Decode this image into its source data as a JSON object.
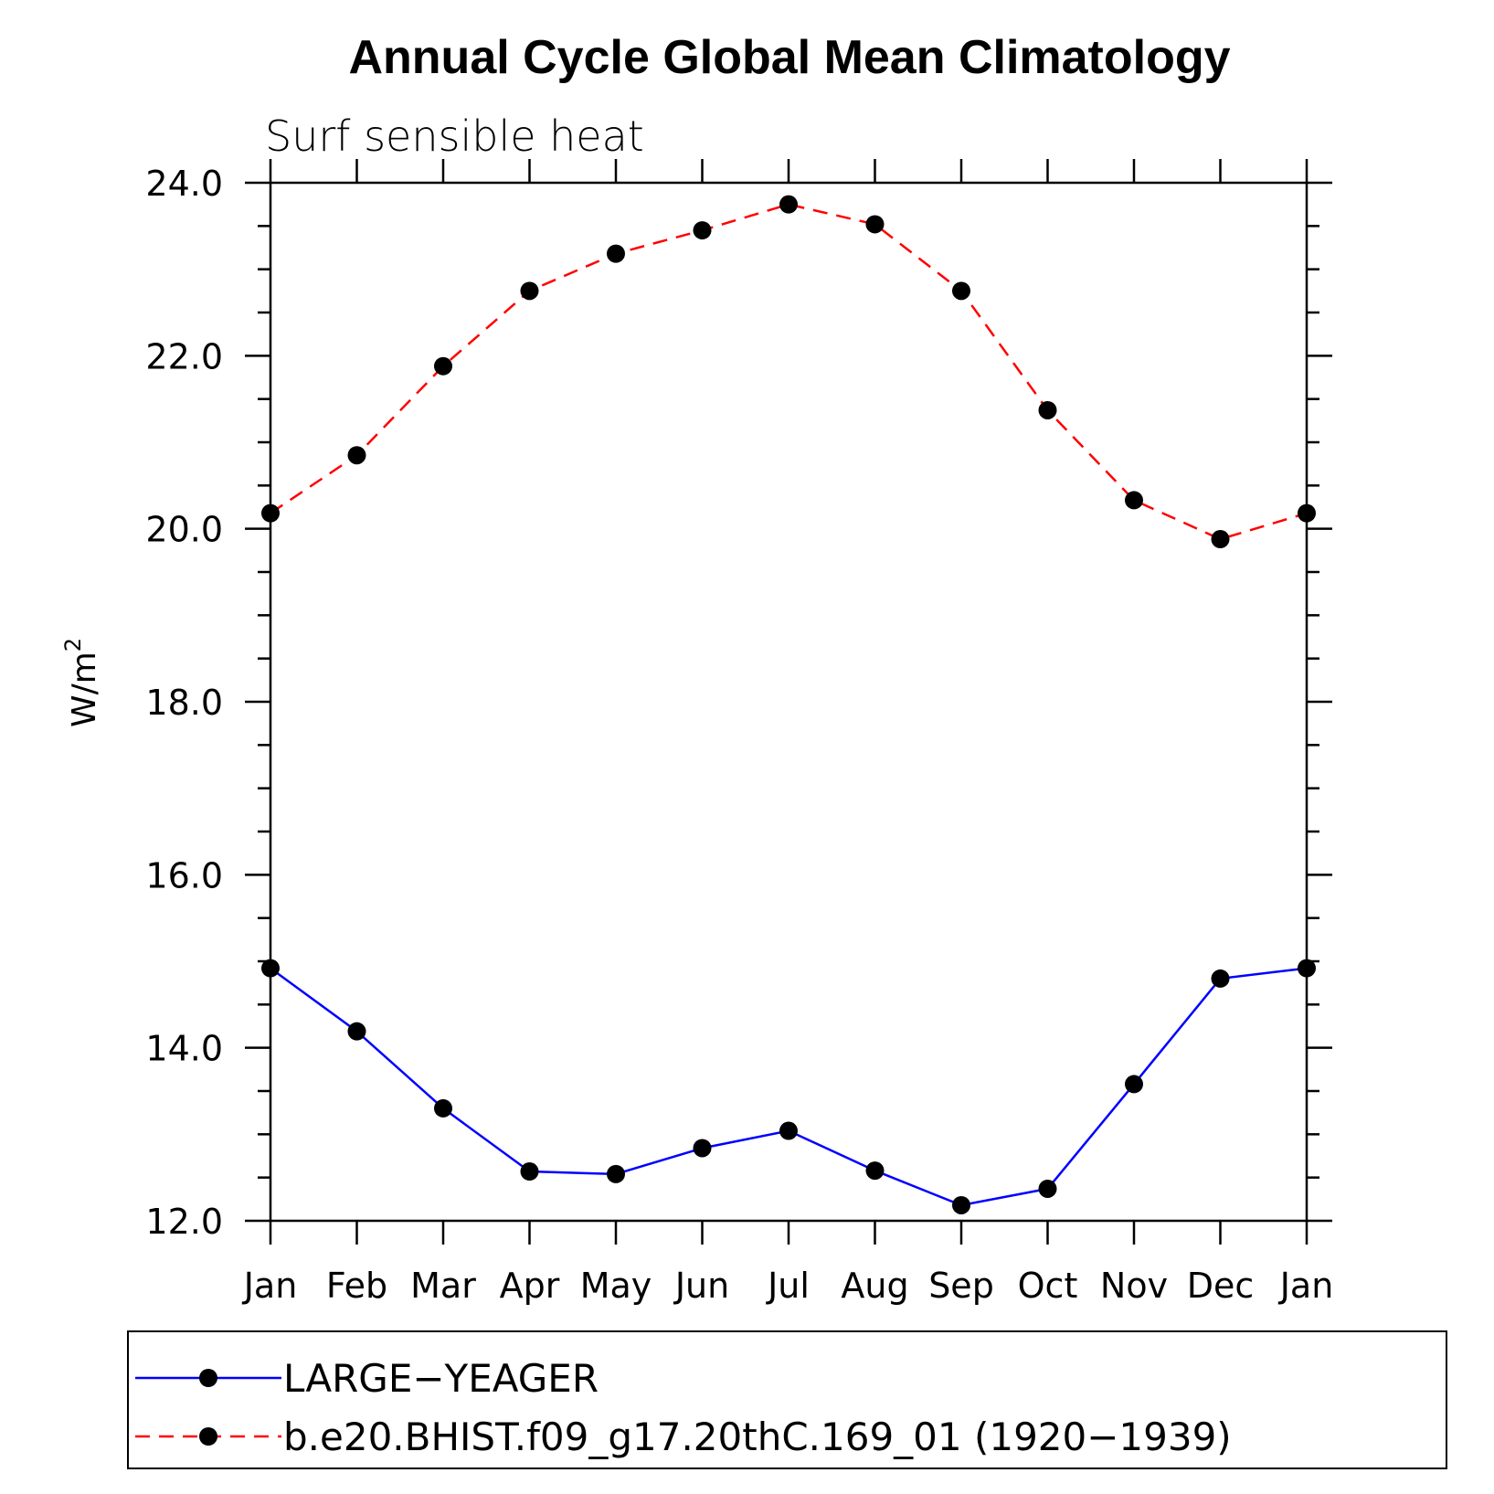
{
  "chart_data": {
    "type": "line",
    "title": "Annual Cycle Global Mean Climatology",
    "subtitle": "Surf sensible heat",
    "ylabel_base": "W/m",
    "ylabel_sup": "2",
    "xlabel": "",
    "categories": [
      "Jan",
      "Feb",
      "Mar",
      "Apr",
      "May",
      "Jun",
      "Jul",
      "Aug",
      "Sep",
      "Oct",
      "Nov",
      "Dec",
      "Jan"
    ],
    "ylim": [
      12.0,
      24.0
    ],
    "yticks": [
      "12.0",
      "14.0",
      "16.0",
      "18.0",
      "20.0",
      "22.0",
      "24.0"
    ],
    "ytick_values": [
      12,
      14,
      16,
      18,
      20,
      22,
      24
    ],
    "grid": false,
    "legend_position": "bottom",
    "series": [
      {
        "name": "LARGE−YEAGER",
        "color": "#0000ff",
        "line_style": "solid",
        "marker": "filled-circle",
        "values": [
          14.92,
          14.19,
          13.3,
          12.57,
          12.54,
          12.84,
          13.04,
          12.58,
          12.18,
          12.37,
          13.58,
          14.8,
          14.92
        ]
      },
      {
        "name": "b.e20.BHIST.f09_g17.20thC.169_01 (1920−1939)",
        "color": "#ff0000",
        "line_style": "dashed",
        "marker": "filled-circle",
        "values": [
          20.18,
          20.85,
          21.88,
          22.75,
          23.18,
          23.45,
          23.75,
          23.52,
          22.75,
          21.37,
          20.33,
          19.88,
          20.18
        ]
      }
    ]
  }
}
